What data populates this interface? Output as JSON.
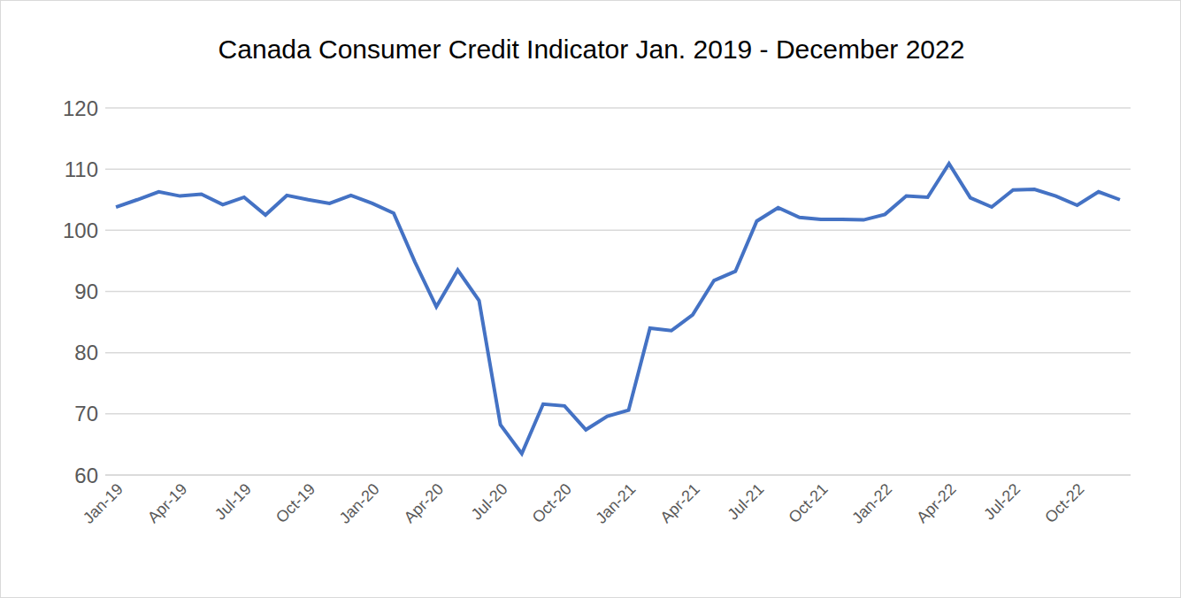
{
  "chart_data": {
    "type": "line",
    "title": "Canada Consumer Credit Indicator Jan. 2019 - December 2022",
    "categories": [
      "Jan-19",
      null,
      null,
      "Apr-19",
      null,
      null,
      "Jul-19",
      null,
      null,
      "Oct-19",
      null,
      null,
      "Jan-20",
      null,
      null,
      "Apr-20",
      null,
      null,
      "Jul-20",
      null,
      null,
      "Oct-20",
      null,
      null,
      "Jan-21",
      null,
      null,
      "Apr-21",
      null,
      null,
      "Jul-21",
      null,
      null,
      "Oct-21",
      null,
      null,
      "Jan-22",
      null,
      null,
      "Apr-22",
      null,
      null,
      "Jul-22",
      null,
      null,
      "Oct-22",
      null,
      null
    ],
    "values": [
      103.8,
      105,
      106.3,
      105.6,
      105.9,
      104.2,
      105.4,
      102.5,
      105.7,
      105,
      104.4,
      105.7,
      104.4,
      102.8,
      94.8,
      87.5,
      93.5,
      88.5,
      68.2,
      63.5,
      71.6,
      71.3,
      67.4,
      69.6,
      70.6,
      84,
      83.6,
      86.2,
      91.8,
      93.3,
      101.5,
      103.7,
      102.1,
      101.8,
      101.8,
      101.7,
      102.6,
      105.6,
      105.4,
      110.9,
      105.3,
      103.8,
      106.6,
      106.7,
      105.6,
      104.1,
      106.3,
      105
    ],
    "color": "#4472c4",
    "ylim": [
      60,
      120
    ],
    "yticks": [
      60,
      70,
      80,
      90,
      100,
      110,
      120
    ],
    "grid": true
  }
}
